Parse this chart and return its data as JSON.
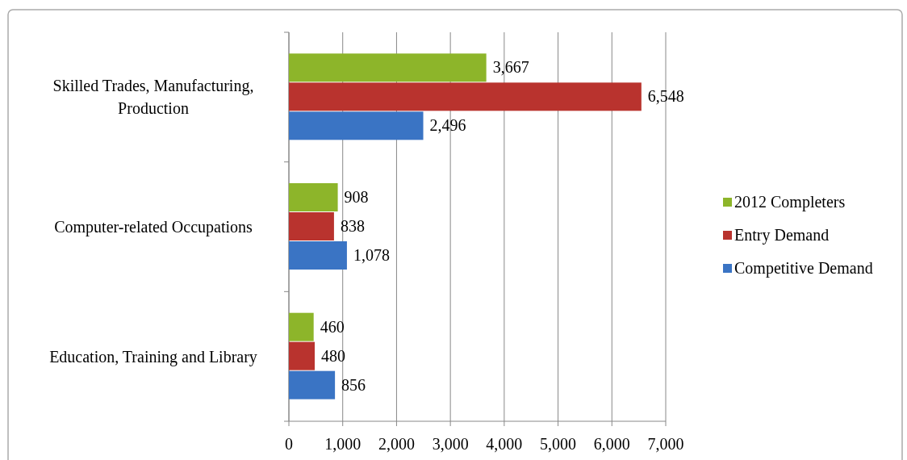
{
  "chart_data": {
    "type": "bar",
    "orientation": "horizontal",
    "categories": [
      "Skilled Trades, Manufacturing, Production",
      "Computer-related Occupations",
      "Education, Training and Library"
    ],
    "series": [
      {
        "name": "2012 Completers",
        "color": "#8db52a",
        "values": [
          3667,
          908,
          460
        ],
        "value_labels": [
          "3,667",
          "908",
          "460"
        ]
      },
      {
        "name": "Entry Demand",
        "color": "#b9332e",
        "values": [
          6548,
          838,
          480
        ],
        "value_labels": [
          "6,548",
          "838",
          "480"
        ]
      },
      {
        "name": "Competitive Demand",
        "color": "#3a74c4",
        "values": [
          2496,
          1078,
          856
        ],
        "value_labels": [
          "2,496",
          "1,078",
          "856"
        ]
      }
    ],
    "xlim": [
      0,
      7000
    ],
    "xticks": [
      {
        "value": 0,
        "label": "0"
      },
      {
        "value": 1000,
        "label": "1,000"
      },
      {
        "value": 2000,
        "label": "2,000"
      },
      {
        "value": 3000,
        "label": "3,000"
      },
      {
        "value": 4000,
        "label": "4,000"
      },
      {
        "value": 5000,
        "label": "5,000"
      },
      {
        "value": 6000,
        "label": "6,000"
      },
      {
        "value": 7000,
        "label": "7,000"
      }
    ],
    "grid": "x",
    "legend": "right"
  }
}
